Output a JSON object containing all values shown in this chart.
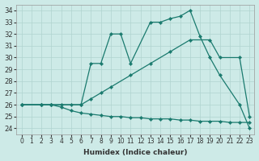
{
  "xlabel": "Humidex (Indice chaleur)",
  "xlim": [
    -0.5,
    23.5
  ],
  "ylim": [
    23.5,
    34.5
  ],
  "xticks": [
    0,
    1,
    2,
    3,
    4,
    5,
    6,
    7,
    8,
    9,
    10,
    11,
    12,
    13,
    14,
    15,
    16,
    17,
    18,
    19,
    20,
    21,
    22,
    23
  ],
  "yticks": [
    24,
    25,
    26,
    27,
    28,
    29,
    30,
    31,
    32,
    33,
    34
  ],
  "bg_color": "#cdeae7",
  "line_color": "#1a7a6e",
  "grid_color": "#b0d4d0",
  "lines": [
    {
      "x": [
        0,
        2,
        3,
        5,
        6,
        7,
        8,
        9,
        10,
        11,
        13,
        14,
        15,
        16,
        17,
        18,
        19,
        20,
        22,
        23
      ],
      "y": [
        26,
        26,
        26,
        26,
        26,
        29.5,
        29.5,
        32.0,
        32.0,
        29.5,
        33.0,
        33.0,
        33.3,
        33.5,
        34.0,
        31.8,
        30.0,
        28.5,
        26.0,
        24.0
      ]
    },
    {
      "x": [
        0,
        2,
        3,
        4,
        6,
        7,
        8,
        9,
        11,
        13,
        15,
        17,
        19,
        20,
        22,
        23
      ],
      "y": [
        26,
        26,
        26,
        26,
        26,
        26.5,
        27.0,
        27.5,
        28.5,
        29.5,
        30.5,
        31.5,
        31.5,
        30.0,
        30.0,
        25.0
      ]
    },
    {
      "x": [
        0,
        2,
        3,
        4,
        5,
        6,
        7,
        8,
        9,
        10,
        11,
        12,
        13,
        14,
        15,
        16,
        17,
        18,
        19,
        20,
        21,
        22,
        23
      ],
      "y": [
        26,
        26,
        26,
        25.8,
        25.5,
        25.3,
        25.2,
        25.1,
        25.0,
        25.0,
        24.9,
        24.9,
        24.8,
        24.8,
        24.8,
        24.7,
        24.7,
        24.6,
        24.6,
        24.6,
        24.5,
        24.5,
        24.5
      ]
    }
  ]
}
